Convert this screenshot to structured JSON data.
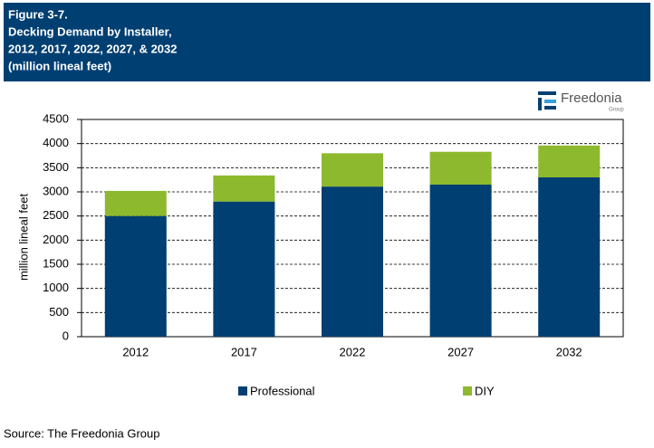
{
  "header": {
    "figure": "Figure 3-7.",
    "title": [
      "Decking Demand by Installer,",
      "2012, 2017, 2022, 2027, & 2032"
    ],
    "subtitle": "(million lineal feet)"
  },
  "logo": {
    "name": "Freedonia",
    "sub": "Group"
  },
  "chart_data": {
    "type": "stacked-bar",
    "y_label": "million lineal feet",
    "categories": [
      "2012",
      "2017",
      "2022",
      "2027",
      "2032"
    ],
    "series": [
      {
        "name": "Professional",
        "color": "#003f72",
        "values": [
          2500,
          2800,
          3110,
          3150,
          3300
        ]
      },
      {
        "name": "DIY",
        "color": "#8db92e",
        "values": [
          520,
          540,
          690,
          680,
          660
        ]
      }
    ],
    "ylim": [
      0,
      4500
    ],
    "yticks": [
      0,
      500,
      1000,
      1500,
      2000,
      2500,
      3000,
      3500,
      4000,
      4500
    ],
    "grid": true
  },
  "source": "Source: The Freedonia Group"
}
